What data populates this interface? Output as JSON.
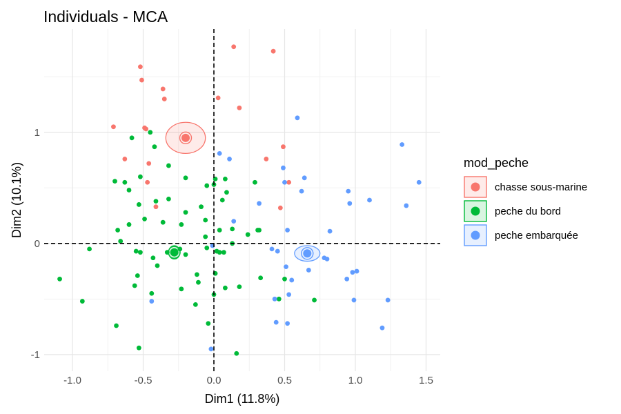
{
  "chart_data": {
    "type": "scatter",
    "title": "Individuals - MCA",
    "xlabel": "Dim1 (11.8%)",
    "ylabel": "Dim2 (10.1%)",
    "xlim": [
      -1.2,
      1.6
    ],
    "ylim": [
      -1.15,
      1.93
    ],
    "x_ticks": [
      -1.0,
      -0.5,
      0.0,
      0.5,
      1.0,
      1.5
    ],
    "x_tick_labels": [
      "-1.0",
      "-0.5",
      "0.0",
      "0.5",
      "1.0",
      "1.5"
    ],
    "y_ticks": [
      -1,
      0,
      1
    ],
    "y_tick_labels": [
      "-1",
      "0",
      "1"
    ],
    "grid": true,
    "legend_position": "right",
    "legend_title": "mod_peche",
    "series": [
      {
        "name": "chasse sous-marine",
        "color": "#F8766D",
        "centroid": [
          -0.2,
          0.95
        ],
        "x": [
          0.14,
          0.42,
          -0.52,
          -0.51,
          -0.36,
          0.03,
          -0.35,
          -0.71,
          -0.49,
          -0.48,
          0.18,
          0.49,
          -0.63,
          -0.46,
          0.37,
          -0.47,
          0.53,
          -0.41,
          0.47
        ],
        "y": [
          1.77,
          1.73,
          1.59,
          1.47,
          1.39,
          1.31,
          1.3,
          1.05,
          1.04,
          1.03,
          1.22,
          0.87,
          0.76,
          0.72,
          0.76,
          0.55,
          0.55,
          0.33,
          0.32
        ]
      },
      {
        "name": "peche du bord",
        "color": "#00BA38",
        "centroid": [
          -0.28,
          -0.08
        ],
        "x": [
          -0.58,
          -0.45,
          -0.42,
          -0.32,
          -0.52,
          -0.63,
          -0.7,
          -0.6,
          -0.2,
          -0.05,
          0.01,
          0.08,
          0.09,
          0.0,
          -0.32,
          -0.41,
          -0.68,
          -0.53,
          -0.09,
          -0.49,
          -0.36,
          -0.6,
          0.06,
          -0.2,
          -0.23,
          -0.06,
          0.04,
          0.13,
          0.29,
          -0.88,
          -0.52,
          -0.33,
          -0.43,
          -0.4,
          -1.09,
          -0.93,
          -0.56,
          -0.44,
          -0.11,
          0.01,
          0.18,
          0.08,
          -0.69,
          -0.04,
          -0.53,
          -0.13,
          0.16,
          -0.23,
          0.0,
          0.33,
          0.46,
          0.5,
          0.71,
          0.31,
          -0.54,
          -0.2,
          -0.05,
          0.13,
          -0.12,
          0.04,
          0.07,
          -0.24,
          -0.55,
          -0.66,
          0.02,
          0.24,
          0.32,
          -0.06
        ],
        "y": [
          0.95,
          1.0,
          0.87,
          0.7,
          0.6,
          0.55,
          0.56,
          0.48,
          0.59,
          0.52,
          0.58,
          0.58,
          0.46,
          0.53,
          0.4,
          0.38,
          0.12,
          0.35,
          0.33,
          0.22,
          0.19,
          0.17,
          0.39,
          0.28,
          0.17,
          0.21,
          0.12,
          0.13,
          0.55,
          -0.05,
          -0.08,
          -0.08,
          -0.13,
          -0.2,
          -0.32,
          -0.52,
          -0.38,
          -0.45,
          -0.35,
          -0.27,
          -0.39,
          -0.4,
          -0.74,
          -0.72,
          -0.94,
          -0.55,
          -0.99,
          -0.41,
          -0.46,
          -0.31,
          -0.5,
          -0.32,
          -0.51,
          0.12,
          -0.29,
          -0.1,
          -0.04,
          0.0,
          -0.28,
          -0.08,
          -0.08,
          -0.05,
          -0.07,
          0.02,
          -0.07,
          0.08,
          0.12,
          0.06
        ]
      },
      {
        "name": "peche embarquée",
        "color": "#619CFF",
        "centroid": [
          0.66,
          -0.09
        ],
        "x": [
          0.59,
          1.33,
          0.04,
          0.11,
          0.49,
          0.64,
          1.45,
          0.5,
          0.62,
          0.95,
          1.1,
          1.36,
          0.96,
          0.32,
          0.82,
          0.14,
          0.52,
          0.41,
          0.45,
          0.78,
          0.8,
          0.67,
          0.51,
          0.55,
          0.94,
          1.01,
          0.99,
          0.43,
          0.53,
          0.44,
          0.98,
          1.23,
          0.52,
          1.19,
          -0.44,
          -0.02,
          -0.01
        ],
        "y": [
          1.13,
          0.89,
          0.81,
          0.76,
          0.68,
          0.59,
          0.55,
          0.55,
          0.47,
          0.47,
          0.39,
          0.34,
          0.36,
          0.36,
          0.11,
          0.2,
          0.12,
          -0.05,
          -0.07,
          -0.13,
          -0.14,
          -0.24,
          -0.21,
          -0.33,
          -0.32,
          -0.25,
          -0.51,
          -0.5,
          -0.46,
          -0.71,
          -0.26,
          -0.51,
          -0.72,
          -0.76,
          -0.52,
          -0.95,
          -0.02
        ]
      }
    ]
  }
}
